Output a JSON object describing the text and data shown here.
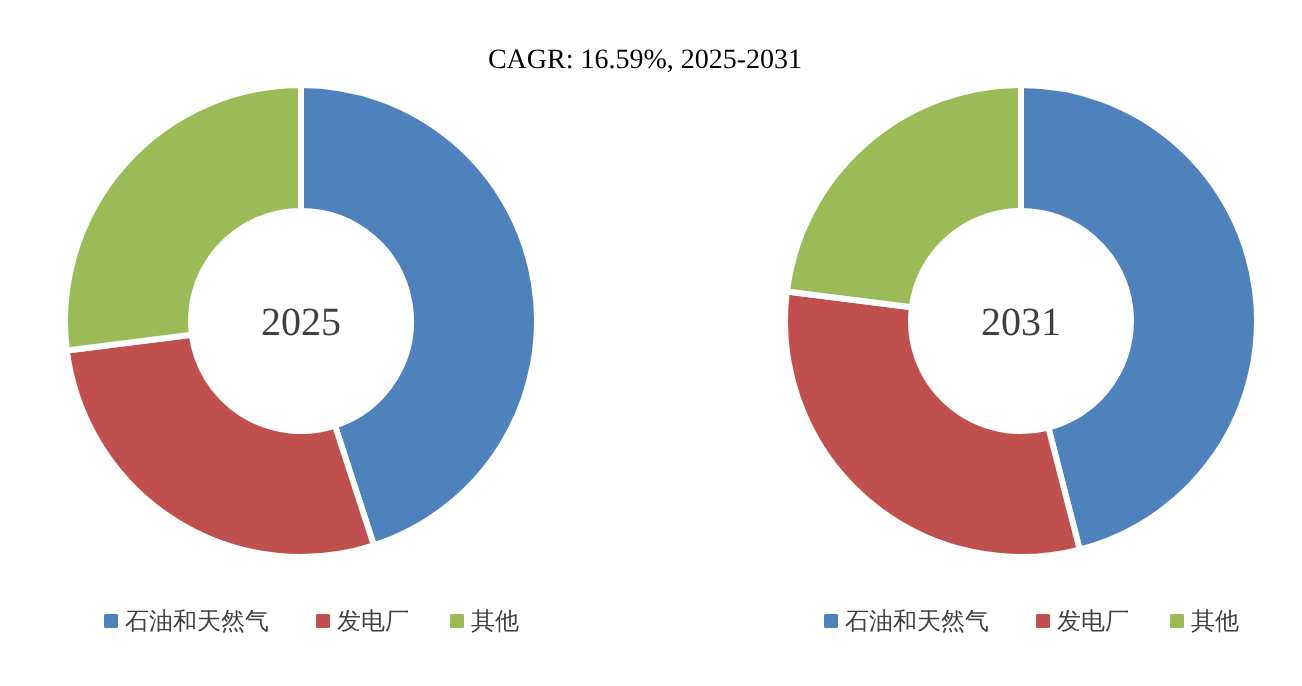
{
  "chart_data": [
    {
      "type": "donut",
      "title": "2025",
      "annotations": [
        "CAGR:   16.59%, 2025-2031"
      ],
      "categories": [
        "石油和天然气",
        "发电厂",
        "其他"
      ],
      "values": [
        45,
        28,
        27
      ],
      "colors": [
        "#4f81bd",
        "#c0504d",
        "#9bbb59"
      ],
      "legend": "bottom"
    },
    {
      "type": "donut",
      "title": "2031",
      "categories": [
        "石油和天然气",
        "发电厂",
        "其他"
      ],
      "values": [
        46,
        31,
        23
      ],
      "colors": [
        "#4f81bd",
        "#c0504d",
        "#9bbb59"
      ],
      "legend": "bottom"
    }
  ]
}
